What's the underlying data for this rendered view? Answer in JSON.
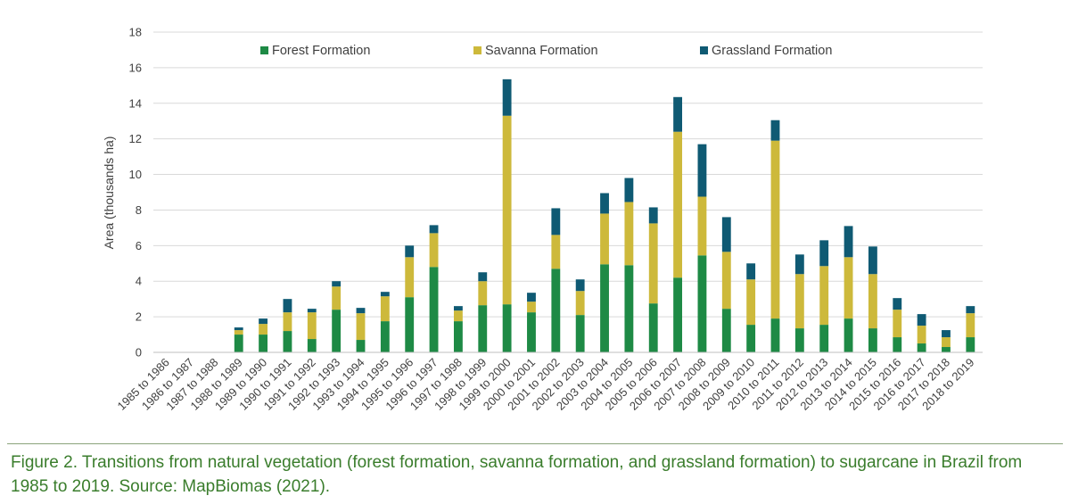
{
  "chart_data": {
    "type": "bar",
    "stacked": true,
    "ylabel": "Area (thousands ha)",
    "xlabel": "",
    "ylim": [
      0,
      18
    ],
    "yticks": [
      0,
      2,
      4,
      6,
      8,
      10,
      12,
      14,
      16,
      18
    ],
    "grid": true,
    "legend_position": "top",
    "categories": [
      "1985 to 1986",
      "1986 to 1987",
      "1987 to 1988",
      "1988 to 1989",
      "1989 to 1990",
      "1990 to 1991",
      "1991 to 1992",
      "1992 to 1993",
      "1993 to 1994",
      "1994 to 1995",
      "1995 to 1996",
      "1996 to 1997",
      "1997 to 1998",
      "1998 to 1999",
      "1999 to 2000",
      "2000 to 2001",
      "2001 to 2002",
      "2002 to 2003",
      "2003 to 2004",
      "2004 to 2005",
      "2005 to 2006",
      "2006 to 2007",
      "2007 to 2008",
      "2008 to 2009",
      "2009 to 2010",
      "2010 to 2011",
      "2011 to 2012",
      "2012 to 2013",
      "2013 to 2014",
      "2014 to 2015",
      "2015 to 2016",
      "2016 to 2017",
      "2017 to 2018",
      "2018 to 2019"
    ],
    "series": [
      {
        "name": "Forest Formation",
        "color": "#1e8a45",
        "values": [
          0,
          0,
          0,
          1.0,
          1.0,
          1.2,
          0.75,
          2.4,
          0.7,
          1.75,
          3.1,
          4.8,
          1.75,
          2.65,
          2.7,
          2.25,
          4.7,
          2.1,
          4.95,
          4.9,
          2.75,
          4.2,
          5.45,
          2.45,
          1.55,
          1.9,
          1.35,
          1.55,
          1.9,
          1.35,
          0.85,
          0.5,
          0.3,
          0.85
        ]
      },
      {
        "name": "Savanna Formation",
        "color": "#cdb93b",
        "values": [
          0,
          0,
          0,
          0.25,
          0.6,
          1.05,
          1.5,
          1.3,
          1.5,
          1.4,
          2.25,
          1.9,
          0.6,
          1.35,
          10.6,
          0.6,
          1.9,
          1.35,
          2.85,
          3.55,
          4.5,
          8.2,
          3.3,
          3.2,
          2.55,
          10.0,
          3.05,
          3.3,
          3.45,
          3.05,
          1.55,
          1.0,
          0.55,
          1.35
        ]
      },
      {
        "name": "Grassland Formation",
        "color": "#0f5a73",
        "values": [
          0,
          0,
          0,
          0.15,
          0.3,
          0.75,
          0.2,
          0.3,
          0.3,
          0.25,
          0.65,
          0.45,
          0.25,
          0.5,
          2.05,
          0.5,
          1.5,
          0.65,
          1.15,
          1.35,
          0.9,
          1.95,
          2.95,
          1.95,
          0.9,
          1.15,
          1.1,
          1.45,
          1.75,
          1.55,
          0.65,
          0.65,
          0.4,
          0.4
        ]
      }
    ]
  },
  "caption": "Figure 2. Transitions from natural vegetation (forest formation, savanna formation, and grassland formation) to sugarcane in Brazil from 1985 to 2019. Source: MapBiomas (2021)."
}
